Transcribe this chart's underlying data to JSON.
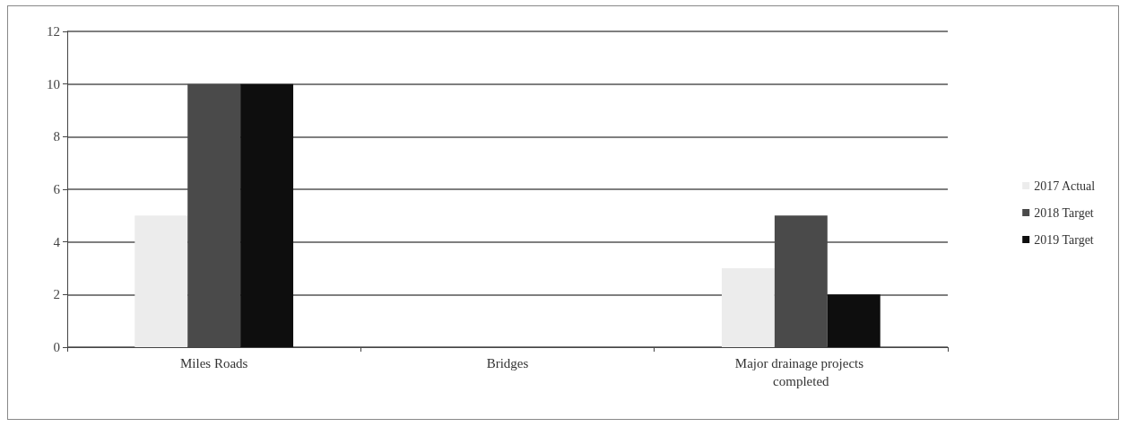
{
  "chart_data": {
    "type": "bar",
    "categories": [
      "Miles Roads",
      "Bridges",
      "Major drainage projects completed"
    ],
    "series": [
      {
        "name": "2017 Actual",
        "color": "#ececec",
        "values": [
          5,
          0,
          3
        ]
      },
      {
        "name": "2018 Target",
        "color": "#4a4a4a",
        "values": [
          10,
          0,
          5
        ]
      },
      {
        "name": "2019 Target",
        "color": "#0e0e0e",
        "values": [
          10,
          0,
          2
        ]
      }
    ],
    "ylim": [
      0,
      12
    ],
    "yticks": [
      0,
      2,
      4,
      6,
      8,
      10,
      12
    ],
    "grid": "y",
    "legend": "right"
  }
}
